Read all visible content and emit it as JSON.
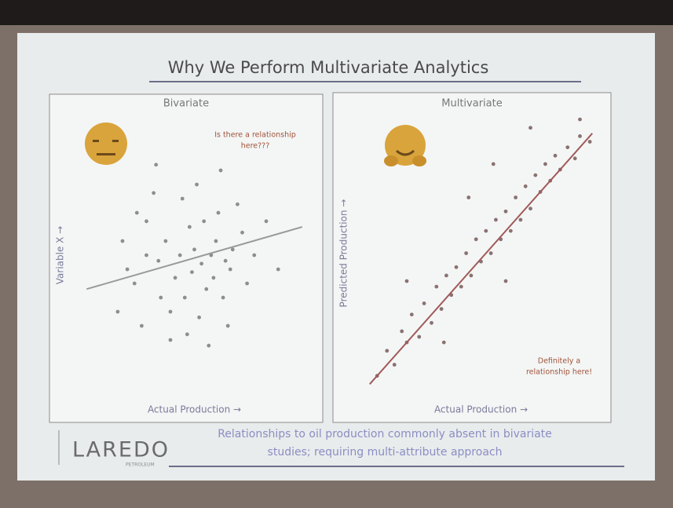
{
  "slide": {
    "title": "Why We Perform Multivariate Analytics",
    "footer": [
      "Relationships to oil production commonly absent in bivariate",
      "studies; requiring multi-attribute approach"
    ],
    "logo": "LAREDO",
    "logo_sub": "PETROLEUM"
  },
  "chart_data": [
    {
      "type": "scatter",
      "title": "Bivariate",
      "x_label": "Actual Production →",
      "y_label": "Variable X →",
      "annotation": [
        "Is there a relationship",
        "here???"
      ],
      "color": "#8e8e8e",
      "line_color": "#9a9a9a",
      "xlim": [
        0,
        100
      ],
      "ylim": [
        0,
        100
      ],
      "x": [
        20,
        25,
        30,
        35,
        40,
        45,
        50,
        55,
        60,
        65,
        70,
        28,
        33,
        38,
        42,
        48,
        52,
        57,
        62,
        68,
        72,
        22,
        36,
        44,
        49,
        54,
        59,
        64,
        75,
        80,
        30,
        46,
        51,
        58,
        66,
        40,
        56,
        34,
        61,
        85,
        18,
        26,
        47,
        63,
        53
      ],
      "values": [
        55,
        40,
        62,
        48,
        30,
        70,
        52,
        38,
        65,
        45,
        58,
        25,
        72,
        55,
        42,
        60,
        28,
        50,
        35,
        68,
        40,
        45,
        35,
        50,
        44,
        62,
        55,
        25,
        50,
        62,
        50,
        35,
        75,
        42,
        52,
        20,
        18,
        82,
        80,
        45,
        30,
        65,
        22,
        48,
        47
      ],
      "trendline": {
        "x": [
          5,
          95
        ],
        "values": [
          38,
          60
        ]
      }
    },
    {
      "type": "scatter",
      "title": "Multivariate",
      "x_label": "Actual Production →",
      "y_label": "Predicted Production →",
      "annotation": [
        "Definitely a",
        "relationship here!"
      ],
      "color": "#8a7272",
      "line_color": "#a05a5a",
      "xlim": [
        0,
        100
      ],
      "ylim": [
        0,
        100
      ],
      "x": [
        8,
        12,
        15,
        18,
        20,
        22,
        25,
        27,
        30,
        32,
        34,
        36,
        38,
        40,
        42,
        44,
        46,
        48,
        50,
        52,
        54,
        56,
        58,
        60,
        62,
        64,
        66,
        68,
        70,
        72,
        74,
        76,
        78,
        80,
        82,
        85,
        88,
        90,
        94,
        70,
        55,
        45,
        20,
        60,
        90,
        35
      ],
      "values": [
        6,
        15,
        10,
        22,
        18,
        28,
        20,
        32,
        25,
        38,
        30,
        42,
        35,
        45,
        38,
        50,
        42,
        55,
        47,
        58,
        50,
        62,
        55,
        65,
        58,
        70,
        62,
        74,
        66,
        78,
        72,
        82,
        76,
        85,
        80,
        88,
        84,
        92,
        90,
        95,
        82,
        70,
        40,
        40,
        98,
        18
      ],
      "trendline": {
        "x": [
          5,
          95
        ],
        "values": [
          3,
          93
        ]
      }
    }
  ]
}
